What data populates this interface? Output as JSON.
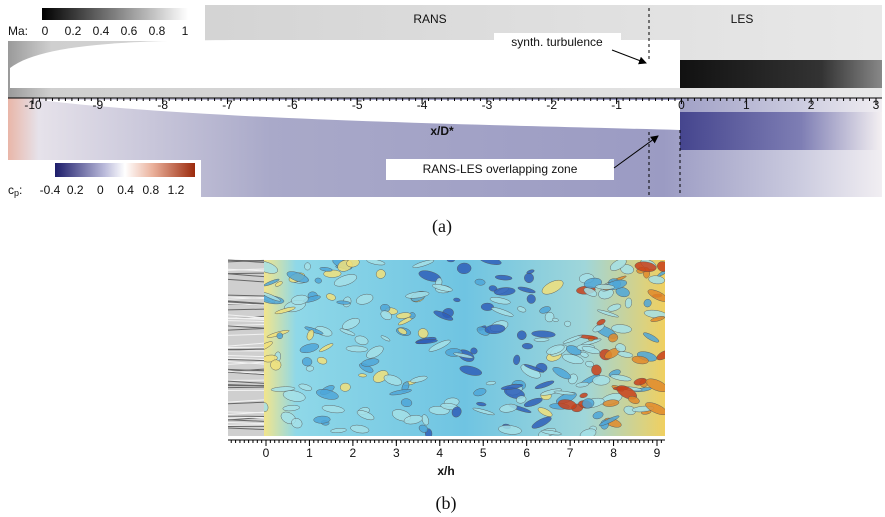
{
  "panel_a": {
    "ma_label": "Ma:",
    "ma_ticks": [
      "0",
      "0.2",
      "0.4",
      "0.6",
      "0.8",
      "1"
    ],
    "cp_label": [
      "c",
      "p",
      ":"
    ],
    "cp_ticks": [
      "-0.4",
      "0.2",
      "0",
      "0.4",
      "0.8",
      "1.2"
    ],
    "rans": "RANS",
    "les": "LES",
    "synth": "synth. turbulence",
    "overlap": "RANS-LES overlapping zone",
    "xlabel": "x/D*",
    "xticks": [
      -10,
      -9,
      -8,
      -7,
      -6,
      -5,
      -4,
      -3,
      -2,
      -1,
      0,
      1,
      2,
      3
    ],
    "caption": "(a)"
  },
  "panel_b": {
    "xticks": [
      0,
      1,
      2,
      3,
      4,
      5,
      6,
      7,
      8,
      9
    ],
    "xlabel": "x/h",
    "caption": "(b)"
  }
}
